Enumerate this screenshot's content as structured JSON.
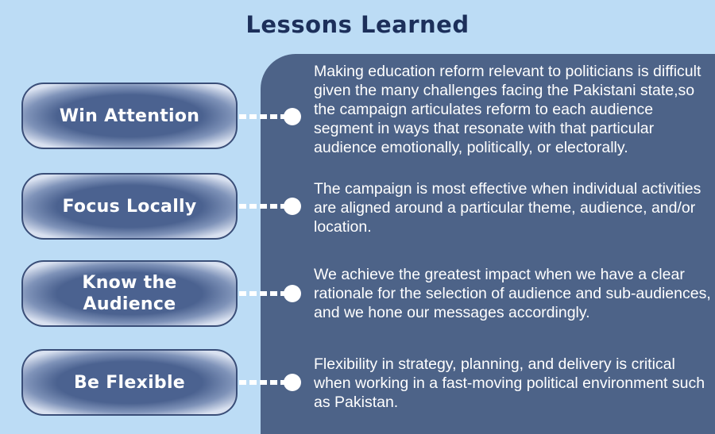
{
  "title": "Lessons Learned",
  "colors": {
    "background": "#bcdcf5",
    "panel": "#4d6388",
    "title": "#1c2f5a",
    "text": "#ffffff"
  },
  "lessons": [
    {
      "label": "Win Attention",
      "description": "Making education reform relevant to politicians is difficult given the many challenges facing the Pakistani state,so the campaign articulates reform to each audience segment in ways that resonate with that particular audience emotionally, politically, or electorally."
    },
    {
      "label": "Focus Locally",
      "description": "The campaign is most effective when individual activities are aligned around a particular theme, audience, and/or location."
    },
    {
      "label": "Know the Audience",
      "description": "We achieve the greatest impact when we have a clear rationale for the selection of audience and sub-audiences, and we hone our messages accordingly."
    },
    {
      "label": "Be Flexible",
      "description": "Flexibility in strategy, planning, and delivery is critical when working in a fast-moving political environment such as Pakistan."
    }
  ]
}
